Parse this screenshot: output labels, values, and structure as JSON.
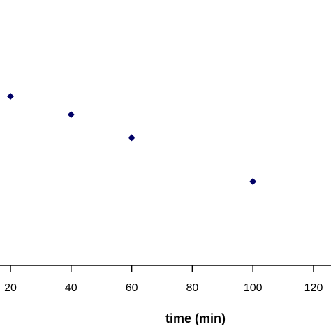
{
  "chart_data": {
    "type": "scatter",
    "title": "",
    "xlabel": "time (min)",
    "ylabel": "",
    "xlim": [
      20,
      120
    ],
    "x_ticks": [
      20,
      40,
      60,
      80,
      100,
      120
    ],
    "x_tick_labels": [
      "20",
      "40",
      "60",
      "80",
      "100",
      "120"
    ],
    "grid": false,
    "marker": "diamond",
    "marker_color": "#000066",
    "series": [
      {
        "x": [
          20,
          40,
          60,
          100
        ],
        "y": [
          0.0,
          -0.25,
          -0.57,
          -1.17
        ]
      }
    ]
  }
}
